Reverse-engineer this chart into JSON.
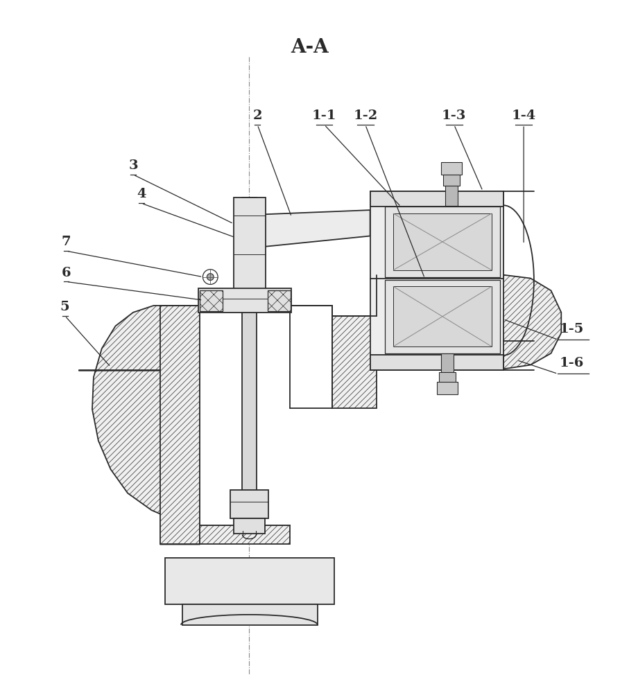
{
  "title": "A-A",
  "title_fontsize": 20,
  "background_color": "#ffffff",
  "line_color": "#2a2a2a",
  "label_fontsize": 14,
  "lw": 1.3,
  "hatch_lw": 0.5
}
